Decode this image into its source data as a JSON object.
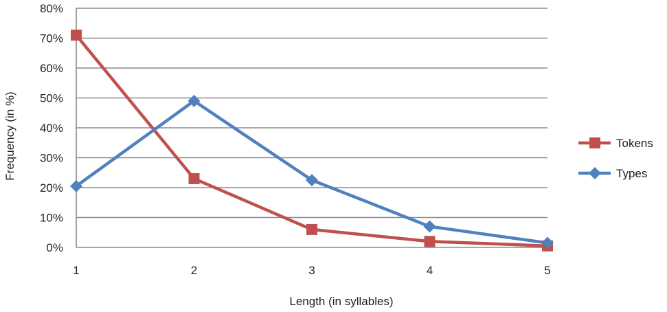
{
  "chart_data": {
    "type": "line",
    "title": "",
    "xlabel": "Length (in syllables)",
    "ylabel": "Frequency (in %)",
    "categories": [
      "1",
      "2",
      "3",
      "4",
      "5"
    ],
    "ylim": [
      0,
      80
    ],
    "yticks": [
      "0%",
      "10%",
      "20%",
      "30%",
      "40%",
      "50%",
      "60%",
      "70%",
      "80%"
    ],
    "grid": true,
    "legend_position": "right",
    "series": [
      {
        "name": "Tokens",
        "values": [
          71,
          23,
          6,
          2,
          0.5
        ],
        "color": "#c0504d",
        "marker": "square"
      },
      {
        "name": "Types",
        "values": [
          20.5,
          49,
          22.5,
          7,
          1.5
        ],
        "color": "#4f81bd",
        "marker": "diamond"
      }
    ]
  }
}
